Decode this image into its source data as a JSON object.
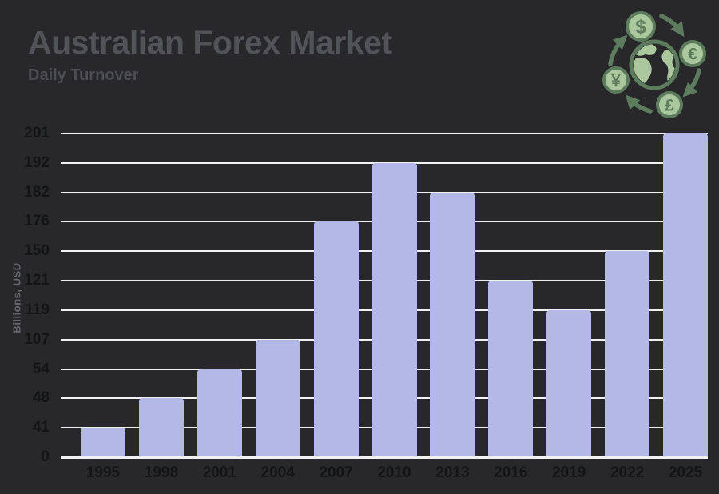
{
  "header": {
    "title": "Australian Forex Market",
    "subtitle": "Daily Turnover"
  },
  "icon": {
    "name": "currency-exchange-icon",
    "currencies": [
      "$",
      "€",
      "£",
      "¥"
    ]
  },
  "colors": {
    "background": "#28282a",
    "bar": "#b4b8e6",
    "gridline": "#f1f1f3",
    "axis_text": "#131416",
    "title_text": "#525357",
    "subtitle_text": "#4c4d50",
    "axis_title_text": "#66686c",
    "icon_dark_green": "#5c7c5d",
    "icon_light_green": "#abc79e"
  },
  "chart_data": {
    "type": "bar",
    "title": "Australian Forex Market",
    "subtitle": "Daily Turnover",
    "xlabel": "",
    "ylabel": "Billions, USD",
    "categories": [
      "1995",
      "1998",
      "2001",
      "2004",
      "2007",
      "2010",
      "2013",
      "2016",
      "2019",
      "2022",
      "2025"
    ],
    "values": [
      41,
      48,
      54,
      107,
      176,
      192,
      182,
      121,
      119,
      150,
      201
    ],
    "yticks": [
      0,
      41,
      48,
      54,
      107,
      119,
      121,
      150,
      176,
      182,
      192,
      201
    ],
    "ylim": [
      0,
      201
    ],
    "y_axis_scale": "ordinal-even-spacing",
    "grid": true,
    "legend": false
  }
}
